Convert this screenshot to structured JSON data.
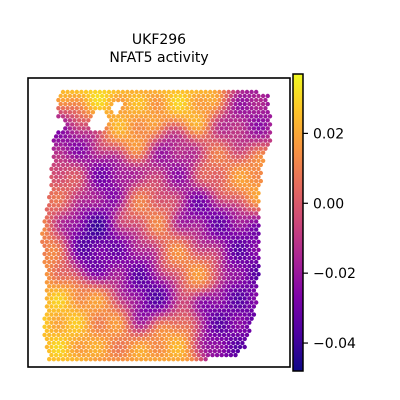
{
  "chart_data": {
    "type": "heatmap",
    "title": "UKF296",
    "subtitle": "NFAT5 activity",
    "xlabel": "",
    "ylabel": "",
    "grid": false,
    "colormap": "plasma",
    "colorbar": {
      "vmin": -0.048,
      "vmax": 0.037,
      "ticks": [
        0.02,
        0.0,
        -0.02,
        -0.04
      ],
      "tick_labels": [
        "0.02",
        "0.00",
        "−0.02",
        "−0.04"
      ]
    },
    "tissue_outline": [
      [
        0.12,
        0.04
      ],
      [
        0.4,
        0.03
      ],
      [
        0.64,
        0.04
      ],
      [
        0.92,
        0.05
      ],
      [
        0.93,
        0.2
      ],
      [
        0.89,
        0.32
      ],
      [
        0.88,
        0.7
      ],
      [
        0.87,
        0.8
      ],
      [
        0.83,
        0.93
      ],
      [
        0.79,
        0.97
      ],
      [
        0.08,
        0.99
      ],
      [
        0.06,
        0.9
      ],
      [
        0.07,
        0.7
      ],
      [
        0.05,
        0.55
      ],
      [
        0.08,
        0.4
      ],
      [
        0.1,
        0.2
      ]
    ],
    "activity_field": [
      {
        "x": 0.22,
        "y": 0.55,
        "v": -0.04
      },
      {
        "x": 0.3,
        "y": 0.35,
        "v": -0.03
      },
      {
        "x": 0.46,
        "y": 0.75,
        "v": -0.035
      },
      {
        "x": 0.67,
        "y": 0.5,
        "v": -0.03
      },
      {
        "x": 0.8,
        "y": 0.16,
        "v": -0.02
      },
      {
        "x": 0.74,
        "y": 0.87,
        "v": -0.03
      },
      {
        "x": 0.16,
        "y": 0.2,
        "v": -0.025
      },
      {
        "x": 0.55,
        "y": 0.3,
        "v": -0.02
      },
      {
        "x": 0.85,
        "y": 0.55,
        "v": -0.03
      },
      {
        "x": 0.36,
        "y": 0.62,
        "v": -0.025
      },
      {
        "x": 0.22,
        "y": 0.06,
        "v": 0.03
      },
      {
        "x": 0.65,
        "y": 0.08,
        "v": 0.025
      },
      {
        "x": 0.12,
        "y": 0.85,
        "v": 0.025
      },
      {
        "x": 0.55,
        "y": 0.92,
        "v": 0.02
      },
      {
        "x": 0.38,
        "y": 0.18,
        "v": 0.02
      },
      {
        "x": 0.88,
        "y": 0.38,
        "v": 0.02
      },
      {
        "x": 0.3,
        "y": 0.82,
        "v": 0.015
      },
      {
        "x": 0.6,
        "y": 0.62,
        "v": 0.015
      },
      {
        "x": 0.45,
        "y": 0.45,
        "v": 0.01
      },
      {
        "x": 0.08,
        "y": 0.6,
        "v": 0.015
      },
      {
        "x": 0.75,
        "y": 0.3,
        "v": 0.01
      },
      {
        "x": 0.15,
        "y": 0.38,
        "v": 0.005
      }
    ],
    "missing_spots": [
      {
        "x": 0.27,
        "y": 0.15,
        "r": 0.035
      },
      {
        "x": 0.12,
        "y": 0.16,
        "r": 0.025
      },
      {
        "x": 0.34,
        "y": 0.1,
        "r": 0.02
      }
    ]
  }
}
